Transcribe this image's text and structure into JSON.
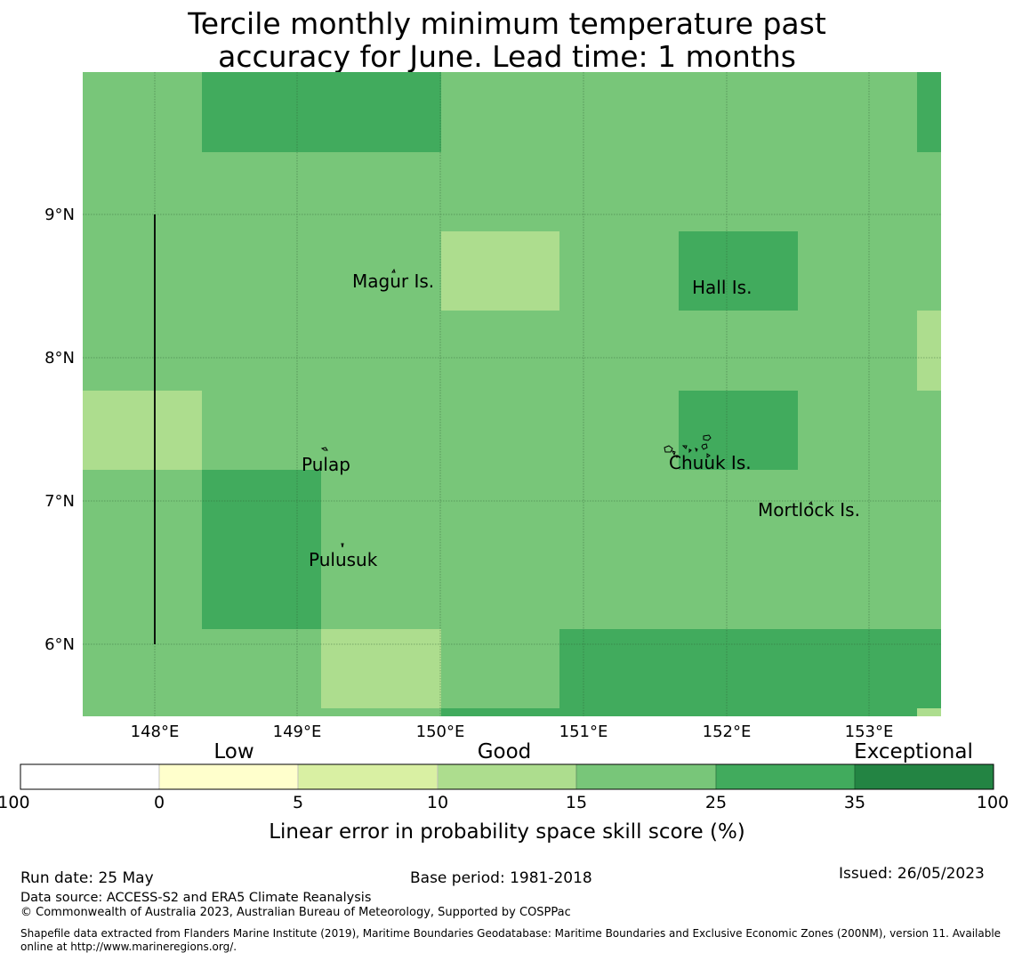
{
  "title_line1": "Tercile monthly minimum temperature past",
  "title_line2": "accuracy for June. Lead time: 1 months",
  "map": {
    "lon_range": [
      147.5,
      153.5
    ],
    "lat_range": [
      5.5,
      10.0
    ],
    "x_ticks": [
      "148°E",
      "149°E",
      "150°E",
      "151°E",
      "152°E",
      "153°E"
    ],
    "y_ticks": [
      "9°N",
      "8°N",
      "7°N",
      "6°N"
    ],
    "grid": true,
    "base_color": "#78c679",
    "places": [
      "Magur Is.",
      "Hall Is.",
      "Pulap",
      "Chuuk Is.",
      "Mortlock Is.",
      "Pulusuk"
    ]
  },
  "colorbar": {
    "category_labels": [
      "Low",
      "Good",
      "Exceptional"
    ],
    "tick_labels": [
      "-100",
      "0",
      "5",
      "10",
      "15",
      "25",
      "35",
      "100"
    ],
    "colors": [
      "#ffffff",
      "#ffffcc",
      "#d9f0a3",
      "#addd8e",
      "#78c679",
      "#41ab5d",
      "#238443"
    ],
    "axis_label": "Linear error in probability space skill score (%)"
  },
  "footer": {
    "run_date": "Run date: 25 May",
    "base_period": "Base period: 1981-2018",
    "issued": "Issued: 26/05/2023",
    "data_source": "Data source: ACCESS-S2 and ERA5 Climate Reanalysis",
    "copyright": "© Commonwealth of Australia 2023, Australian Bureau of Meteorology, Supported by COSPPac",
    "shapefile_line1": "Shapefile data extracted from Flanders Marine Institute (2019), Maritime Boundaries Geodatabase: Maritime Boundaries and Exclusive Economic Zones (200NM), version 11. Available",
    "shapefile_line2": "online at http://www.marineregions.org/."
  }
}
